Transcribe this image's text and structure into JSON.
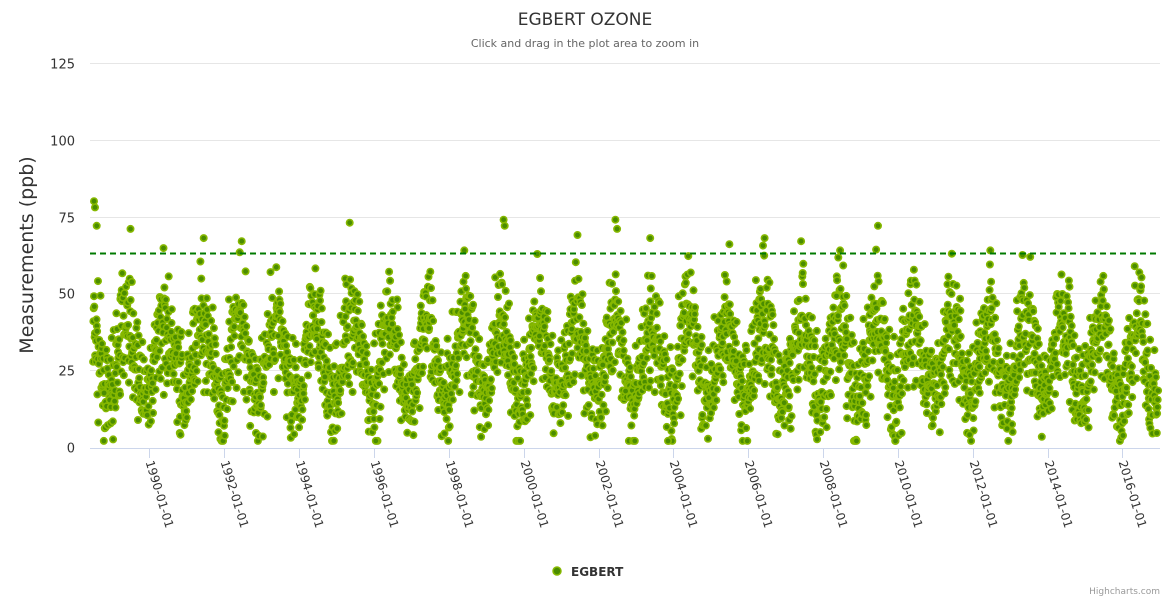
{
  "chart_data": {
    "type": "scatter",
    "title": "EGBERT OZONE",
    "subtitle": "Click and drag in the plot area to zoom in",
    "ylabel": "Measurements (ppb)",
    "xlabel": "",
    "ylim": [
      0,
      125
    ],
    "yticks": [
      "0",
      "25",
      "50",
      "75",
      "100",
      "125"
    ],
    "xlim": [
      "1988-06-01",
      "2017-01-01"
    ],
    "xticks": [
      "1990-01-01",
      "1992-01-01",
      "1994-01-01",
      "1996-01-01",
      "1998-01-01",
      "2000-01-01",
      "2002-01-01",
      "2004-01-01",
      "2006-01-01",
      "2008-01-01",
      "2010-01-01",
      "2012-01-01",
      "2014-01-01",
      "2016-01-01"
    ],
    "grid": true,
    "legend_position": "bottom-center",
    "threshold": {
      "value": 63,
      "color": "#007a00",
      "style": "dashed"
    },
    "series": [
      {
        "name": "EGBERT",
        "color_fill": "#4a8c00",
        "color_stroke": "#86b800",
        "generator": {
          "start": "1988-07-01",
          "end": "2016-12-15",
          "step_days": 3,
          "mean": 28,
          "seasonal_amplitude": 12,
          "peak_month": 5,
          "noise": 8,
          "min": 2,
          "max": 80,
          "seed": 7
        },
        "outliers": [
          [
            "1988-07-10",
            80
          ],
          [
            "1988-07-20",
            78
          ],
          [
            "1988-08-05",
            72
          ],
          [
            "1989-07-01",
            71
          ],
          [
            "1991-06-15",
            68
          ],
          [
            "1992-06-20",
            67
          ],
          [
            "1995-05-10",
            73
          ],
          [
            "1998-06-01",
            64
          ],
          [
            "1999-06-20",
            74
          ],
          [
            "1999-07-01",
            72
          ],
          [
            "2001-06-10",
            69
          ],
          [
            "2002-06-15",
            74
          ],
          [
            "2002-07-01",
            71
          ],
          [
            "2003-05-20",
            68
          ],
          [
            "2005-07-01",
            66
          ],
          [
            "2006-06-10",
            68
          ],
          [
            "2007-06-01",
            67
          ],
          [
            "2008-06-15",
            64
          ],
          [
            "2009-06-20",
            72
          ],
          [
            "2012-06-20",
            64
          ],
          [
            "1996-01-20",
            2
          ],
          [
            "2003-11-10",
            2
          ],
          [
            "1990-11-01",
            4
          ],
          [
            "2011-12-01",
            4
          ]
        ]
      }
    ]
  },
  "credits": "Highcharts.com"
}
